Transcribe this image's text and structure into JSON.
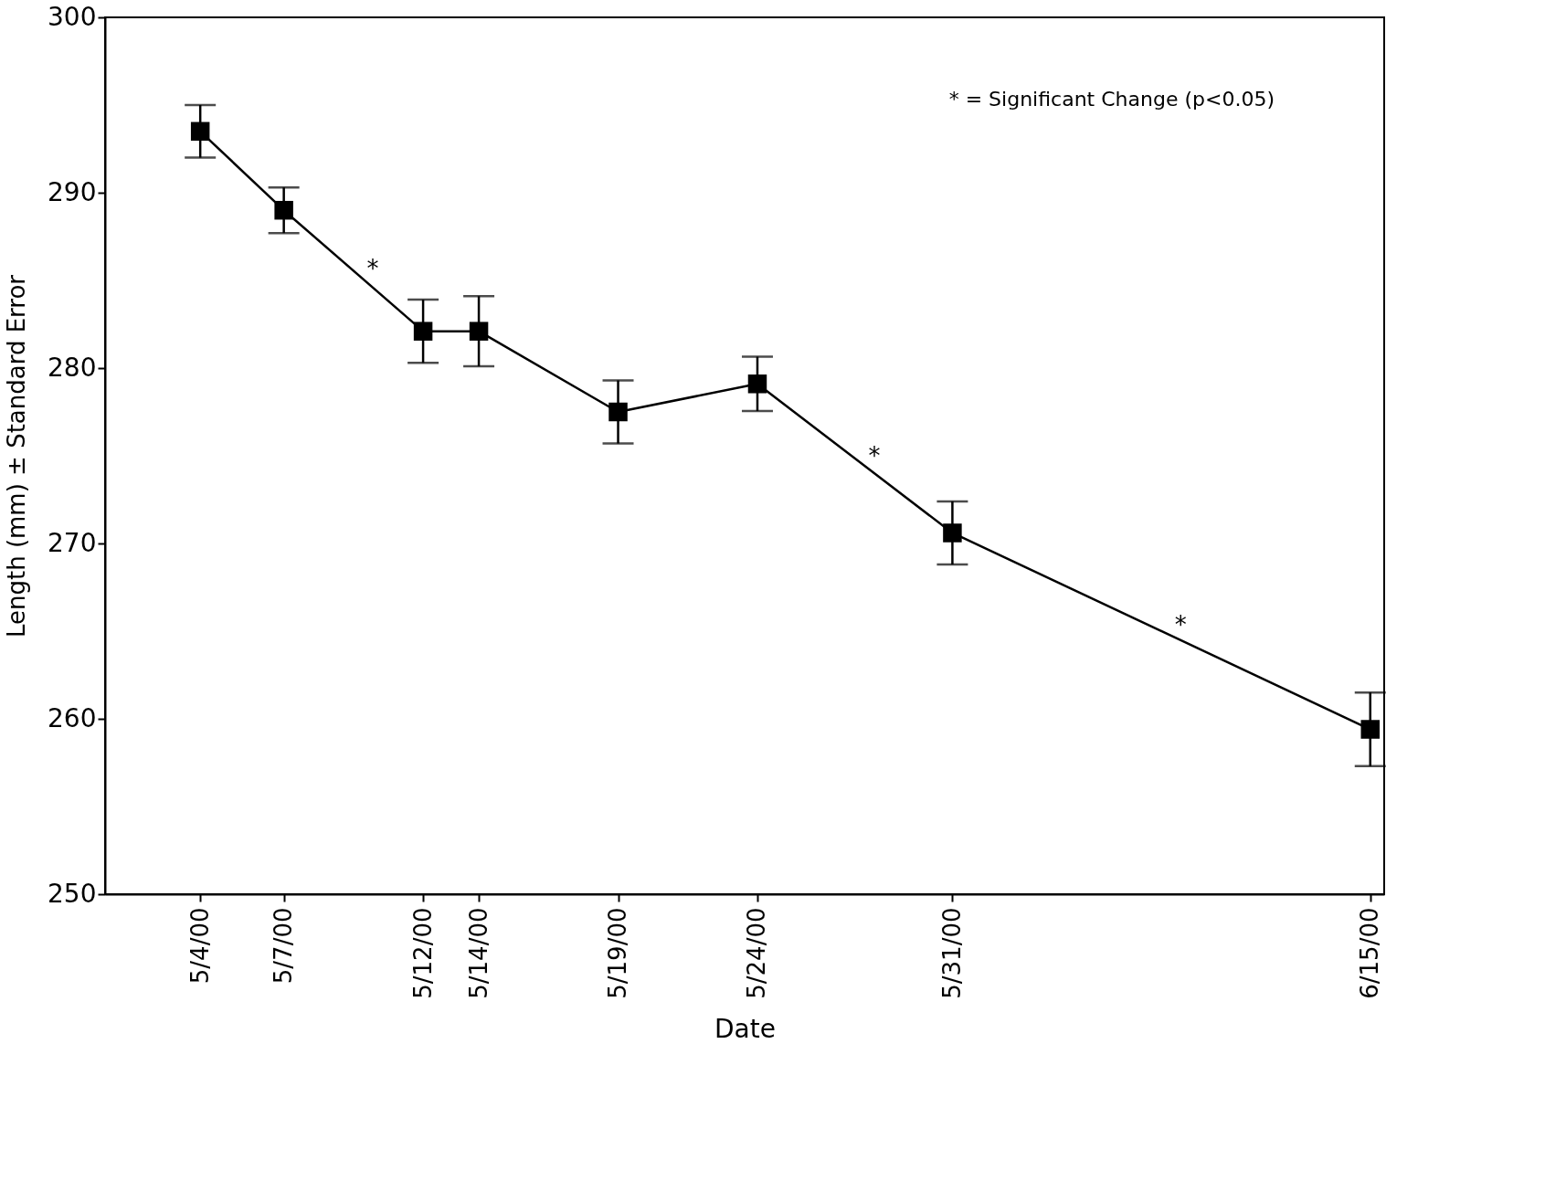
{
  "chart_data": {
    "type": "line",
    "xlabel": "Date",
    "ylabel": "Length (mm) ± Standard Error",
    "x": [
      "2000-05-04",
      "2000-05-07",
      "2000-05-12",
      "2000-05-14",
      "2000-05-19",
      "2000-05-24",
      "2000-05-31",
      "2000-06-15"
    ],
    "series": [
      {
        "color": "#000000",
        "values": [
          293.5,
          289.0,
          282.1,
          282.1,
          277.5,
          279.1,
          270.6,
          259.4
        ],
        "errors": [
          1.5,
          1.3,
          1.8,
          2.0,
          1.8,
          1.55,
          1.8,
          2.1
        ]
      }
    ],
    "xlim": [
      "2000-04-30T14:00",
      "2000-06-15T12:00"
    ],
    "xticks": [
      {
        "value": "2000-05-04",
        "label": "5/4/00"
      },
      {
        "value": "2000-05-07",
        "label": "5/7/00"
      },
      {
        "value": "2000-05-12",
        "label": "5/12/00"
      },
      {
        "value": "2000-05-14",
        "label": "5/14/00"
      },
      {
        "value": "2000-05-19",
        "label": "5/19/00"
      },
      {
        "value": "2000-05-24",
        "label": "5/24/00"
      },
      {
        "value": "2000-05-31",
        "label": "5/31/00"
      },
      {
        "value": "2000-06-15",
        "label": "6/15/00"
      }
    ],
    "ylim": [
      250,
      300
    ],
    "yticks": [
      250,
      260,
      270,
      280,
      290,
      300
    ],
    "grid": false,
    "legend": false,
    "marker": "square",
    "line_style": "solid",
    "annotations": [
      "* = Significant Change (p<0.05)",
      {
        "text": "*",
        "x": "2000-05-10",
        "y": 284.9
      },
      {
        "text": "*",
        "x": "2000-05-28",
        "y": 274.2
      },
      {
        "text": "*",
        "x": "2000-06-08",
        "y": 264.6
      }
    ]
  }
}
